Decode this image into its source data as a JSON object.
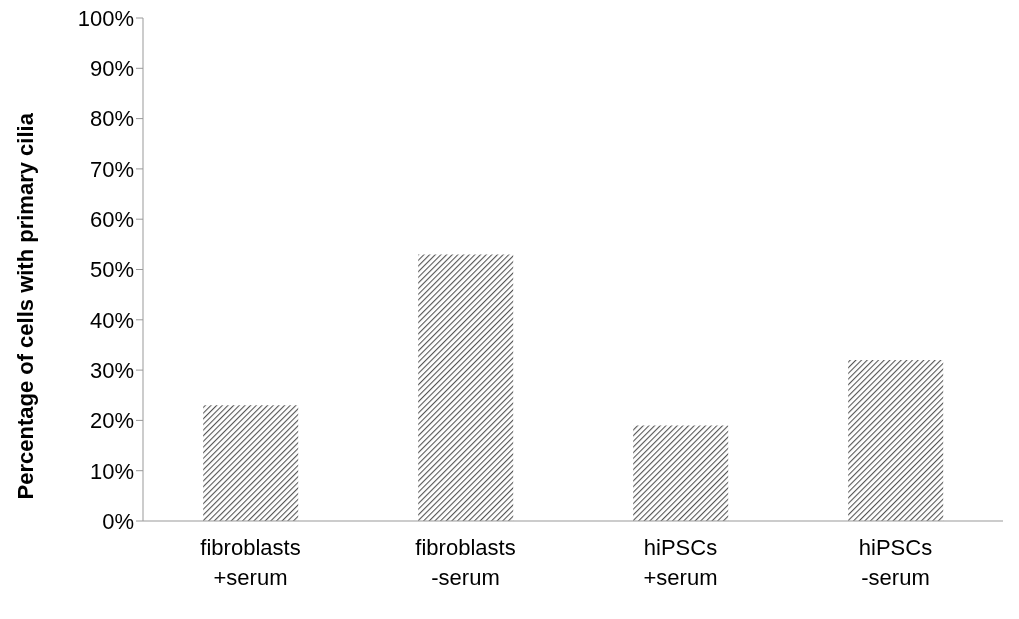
{
  "chart_data": {
    "type": "bar",
    "ylabel": "Percentage of cells with primary cilia",
    "categories": [
      "fibroblasts\n+serum",
      "fibroblasts\n-serum",
      "hiPSCs\n+serum",
      "hiPSCs\n-serum"
    ],
    "values": [
      23,
      53,
      19,
      32
    ],
    "color": "#555555",
    "ylim": [
      0,
      100
    ],
    "yticks": [
      {
        "value": 0,
        "label": "0%"
      },
      {
        "value": 10,
        "label": "10%"
      },
      {
        "value": 20,
        "label": "20%"
      },
      {
        "value": 30,
        "label": "30%"
      },
      {
        "value": 40,
        "label": "40%"
      },
      {
        "value": 50,
        "label": "50%"
      },
      {
        "value": 60,
        "label": "60%"
      },
      {
        "value": 70,
        "label": "70%"
      },
      {
        "value": 80,
        "label": "80%"
      },
      {
        "value": 90,
        "label": "90%"
      },
      {
        "value": 100,
        "label": "100%"
      }
    ],
    "grid": false,
    "legend": false
  }
}
